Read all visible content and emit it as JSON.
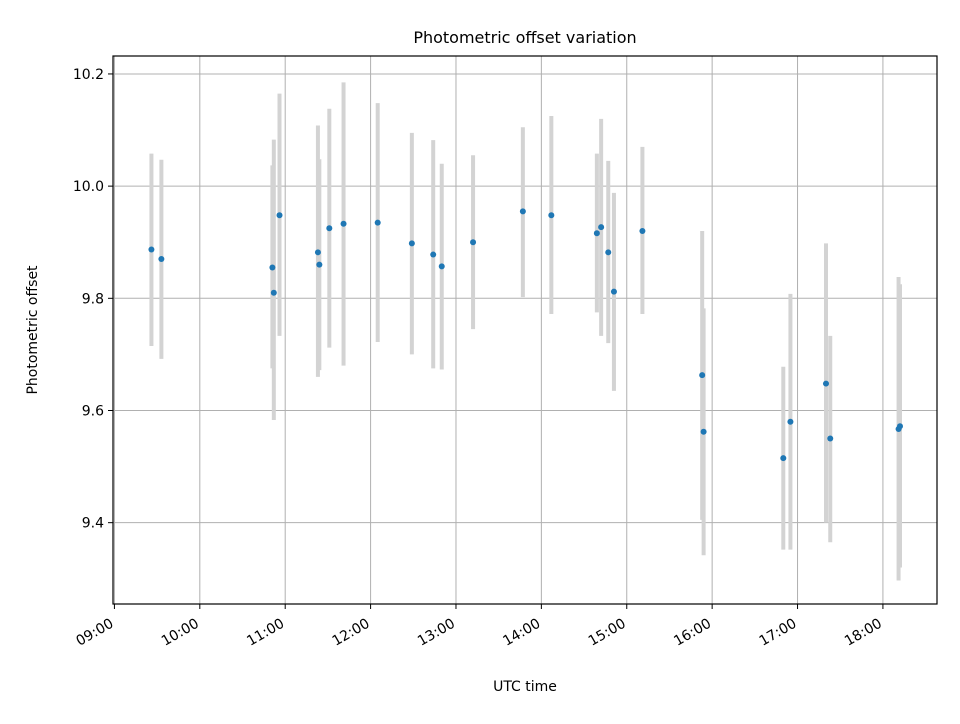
{
  "chart_data": {
    "type": "scatter",
    "title": "Photometric offset variation",
    "xlabel": "UTC time",
    "ylabel": "Photometric offset",
    "x_ticks": [
      "09:00",
      "10:00",
      "11:00",
      "12:00",
      "13:00",
      "14:00",
      "15:00",
      "16:00",
      "17:00",
      "18:00"
    ],
    "y_ticks": [
      "9.4",
      "9.6",
      "9.8",
      "10.0",
      "10.2"
    ],
    "xlim": [
      "08:59",
      "18:38"
    ],
    "ylim": [
      9.255,
      10.232
    ],
    "grid": true,
    "colors": {
      "marker": "#1f77b4",
      "errorbar": "#d3d3d3",
      "grid": "#b0b0b0",
      "axes": "#000000"
    },
    "points": [
      {
        "x": "09:26",
        "y": 9.887,
        "ylo": 9.715,
        "yhi": 10.058
      },
      {
        "x": "09:33",
        "y": 9.87,
        "ylo": 9.692,
        "yhi": 10.047
      },
      {
        "x": "10:51",
        "y": 9.855,
        "ylo": 9.675,
        "yhi": 10.037
      },
      {
        "x": "10:52",
        "y": 9.81,
        "ylo": 9.583,
        "yhi": 10.083
      },
      {
        "x": "10:56",
        "y": 9.948,
        "ylo": 9.733,
        "yhi": 10.165
      },
      {
        "x": "11:23",
        "y": 9.882,
        "ylo": 9.66,
        "yhi": 10.108
      },
      {
        "x": "11:24",
        "y": 9.86,
        "ylo": 9.672,
        "yhi": 10.048
      },
      {
        "x": "11:31",
        "y": 9.925,
        "ylo": 9.712,
        "yhi": 10.138
      },
      {
        "x": "11:41",
        "y": 9.933,
        "ylo": 9.68,
        "yhi": 10.185
      },
      {
        "x": "12:05",
        "y": 9.935,
        "ylo": 9.722,
        "yhi": 10.148
      },
      {
        "x": "12:29",
        "y": 9.898,
        "ylo": 9.7,
        "yhi": 10.095
      },
      {
        "x": "12:44",
        "y": 9.878,
        "ylo": 9.675,
        "yhi": 10.082
      },
      {
        "x": "12:50",
        "y": 9.857,
        "ylo": 9.673,
        "yhi": 10.04
      },
      {
        "x": "13:12",
        "y": 9.9,
        "ylo": 9.745,
        "yhi": 10.055
      },
      {
        "x": "13:47",
        "y": 9.955,
        "ylo": 9.802,
        "yhi": 10.105
      },
      {
        "x": "14:07",
        "y": 9.948,
        "ylo": 9.772,
        "yhi": 10.125
      },
      {
        "x": "14:39",
        "y": 9.916,
        "ylo": 9.775,
        "yhi": 10.058
      },
      {
        "x": "14:42",
        "y": 9.927,
        "ylo": 9.733,
        "yhi": 10.12
      },
      {
        "x": "14:47",
        "y": 9.882,
        "ylo": 9.72,
        "yhi": 10.045
      },
      {
        "x": "14:51",
        "y": 9.812,
        "ylo": 9.635,
        "yhi": 9.988
      },
      {
        "x": "15:11",
        "y": 9.92,
        "ylo": 9.772,
        "yhi": 10.07
      },
      {
        "x": "15:53",
        "y": 9.663,
        "ylo": 9.405,
        "yhi": 9.92
      },
      {
        "x": "15:54",
        "y": 9.562,
        "ylo": 9.342,
        "yhi": 9.782
      },
      {
        "x": "16:50",
        "y": 9.515,
        "ylo": 9.352,
        "yhi": 9.678
      },
      {
        "x": "16:55",
        "y": 9.58,
        "ylo": 9.352,
        "yhi": 9.808
      },
      {
        "x": "17:20",
        "y": 9.648,
        "ylo": 9.4,
        "yhi": 9.898
      },
      {
        "x": "17:23",
        "y": 9.55,
        "ylo": 9.365,
        "yhi": 9.733
      },
      {
        "x": "18:11",
        "y": 9.567,
        "ylo": 9.297,
        "yhi": 9.838
      },
      {
        "x": "18:12",
        "y": 9.572,
        "ylo": 9.32,
        "yhi": 9.825
      }
    ]
  }
}
